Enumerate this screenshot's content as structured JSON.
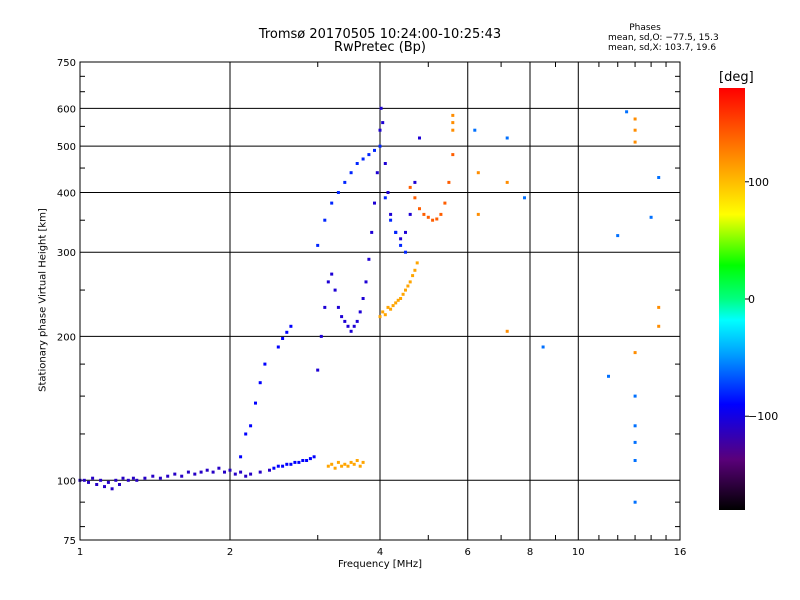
{
  "chart_data": {
    "type": "scatter",
    "title": "Tromsø 20170505 10:24:00-10:25:43",
    "subtitle": "RwPretec (Bp)",
    "xlabel": "Frequency [MHz]",
    "ylabel": "Stationary phase Virtual Height [km]",
    "x_scale": "log",
    "y_scale": "log",
    "xlim": [
      1,
      16
    ],
    "ylim": [
      75,
      750
    ],
    "x_ticks": [
      1,
      2,
      4,
      6,
      8,
      10,
      16
    ],
    "x_tick_labels": [
      "1",
      "2",
      "4",
      "6",
      "8",
      "10",
      "16"
    ],
    "y_ticks": [
      75,
      100,
      200,
      300,
      400,
      500,
      600,
      750
    ],
    "y_tick_labels": [
      "75",
      "100",
      "200",
      "300",
      "400",
      "500",
      "600",
      "750"
    ],
    "grid": true,
    "phase_stats": {
      "header": "Phases",
      "line_o": "mean, sd,O: −77.5, 15.3",
      "line_x": "mean, sd,X: 103.7, 19.6"
    },
    "colorbar": {
      "unit_label": "[deg]",
      "range": [
        -180,
        180
      ],
      "ticks": [
        100,
        0,
        -100
      ],
      "tick_labels": [
        "100",
        "0",
        "−100"
      ]
    },
    "series": [
      {
        "phase_deg": -110,
        "x": [
          1.0,
          1.02,
          1.04,
          1.06,
          1.08,
          1.1,
          1.12,
          1.14,
          1.16,
          1.18,
          1.2,
          1.22,
          1.25,
          1.28,
          1.3,
          1.35,
          1.4,
          1.45,
          1.5,
          1.55,
          1.6,
          1.65,
          1.7,
          1.75,
          1.8,
          1.85,
          1.9,
          1.95,
          2.0,
          2.05,
          2.1,
          2.15,
          2.2,
          2.3,
          2.4
        ],
        "y": [
          100,
          100,
          99,
          101,
          98,
          100,
          97,
          99,
          96,
          100,
          98,
          101,
          100,
          101,
          100,
          101,
          102,
          101,
          102,
          103,
          102,
          104,
          103,
          104,
          105,
          104,
          106,
          104,
          105,
          103,
          104,
          102,
          103,
          104,
          105
        ]
      },
      {
        "phase_deg": -90,
        "x": [
          2.45,
          2.5,
          2.55,
          2.6,
          2.65,
          2.7,
          2.75,
          2.8,
          2.85,
          2.9,
          2.95,
          2.1,
          2.15,
          2.2,
          2.25,
          2.3,
          2.35,
          2.5,
          2.55,
          2.6,
          2.65
        ],
        "y": [
          106,
          107,
          107,
          108,
          108,
          109,
          109,
          110,
          110,
          111,
          112,
          112,
          125,
          130,
          145,
          160,
          175,
          190,
          198,
          204,
          210
        ]
      },
      {
        "phase_deg": -105,
        "x": [
          3.0,
          3.05,
          3.1,
          3.15,
          3.2,
          3.25,
          3.3,
          3.35,
          3.4,
          3.45,
          3.5,
          3.55,
          3.6,
          3.65,
          3.7,
          3.75,
          3.8,
          3.85,
          3.9,
          3.95,
          4.0,
          4.02,
          4.05,
          4.1,
          4.15,
          4.2,
          4.3,
          4.4,
          4.5,
          4.6,
          4.7,
          4.8
        ],
        "y": [
          170,
          200,
          230,
          260,
          270,
          250,
          230,
          220,
          215,
          210,
          205,
          210,
          215,
          225,
          240,
          260,
          290,
          330,
          380,
          440,
          540,
          600,
          560,
          460,
          400,
          360,
          330,
          320,
          330,
          360,
          420,
          520
        ]
      },
      {
        "phase_deg": -80,
        "x": [
          3.0,
          3.1,
          3.2,
          3.3,
          3.4,
          3.5,
          3.6,
          3.7,
          3.8,
          3.9,
          4.0,
          4.1,
          4.2,
          4.3,
          4.4,
          4.5
        ],
        "y": [
          310,
          350,
          380,
          400,
          420,
          440,
          460,
          470,
          480,
          490,
          500,
          390,
          350,
          330,
          310,
          300
        ]
      },
      {
        "phase_deg": 110,
        "x": [
          3.15,
          3.2,
          3.25,
          3.3,
          3.35,
          3.4,
          3.45,
          3.5,
          3.55,
          3.6,
          3.65,
          3.7,
          4.0,
          4.05,
          4.1,
          4.15,
          4.2,
          4.25,
          4.3,
          4.35,
          4.4,
          4.45,
          4.5,
          4.55,
          4.6,
          4.65,
          4.7,
          4.75
        ],
        "y": [
          107,
          108,
          106,
          109,
          107,
          108,
          107,
          109,
          108,
          110,
          107,
          109,
          220,
          225,
          222,
          230,
          228,
          232,
          235,
          238,
          240,
          245,
          250,
          255,
          260,
          268,
          275,
          285
        ]
      },
      {
        "phase_deg": 140,
        "x": [
          4.6,
          4.7,
          4.8,
          4.9,
          5.0,
          5.1,
          5.2,
          5.3,
          5.4,
          5.5,
          5.6
        ],
        "y": [
          410,
          390,
          370,
          360,
          355,
          350,
          352,
          360,
          380,
          420,
          480
        ]
      },
      {
        "phase_deg": 120,
        "x": [
          5.6,
          5.6,
          5.6,
          6.3,
          6.3,
          7.2,
          7.2,
          13.0,
          13.0,
          13.0,
          13.0,
          14.5,
          14.5
        ],
        "y": [
          540,
          560,
          580,
          360,
          440,
          420,
          205,
          510,
          540,
          570,
          185,
          210,
          230
        ]
      },
      {
        "phase_deg": -60,
        "x": [
          6.2,
          7.2,
          7.8,
          8.5,
          11.5,
          12.0,
          12.5,
          13.0,
          13.0,
          13.0,
          13.0,
          13.0,
          14.0,
          14.5
        ],
        "y": [
          540,
          520,
          390,
          190,
          165,
          325,
          590,
          150,
          130,
          120,
          110,
          90,
          355,
          430
        ]
      }
    ]
  }
}
